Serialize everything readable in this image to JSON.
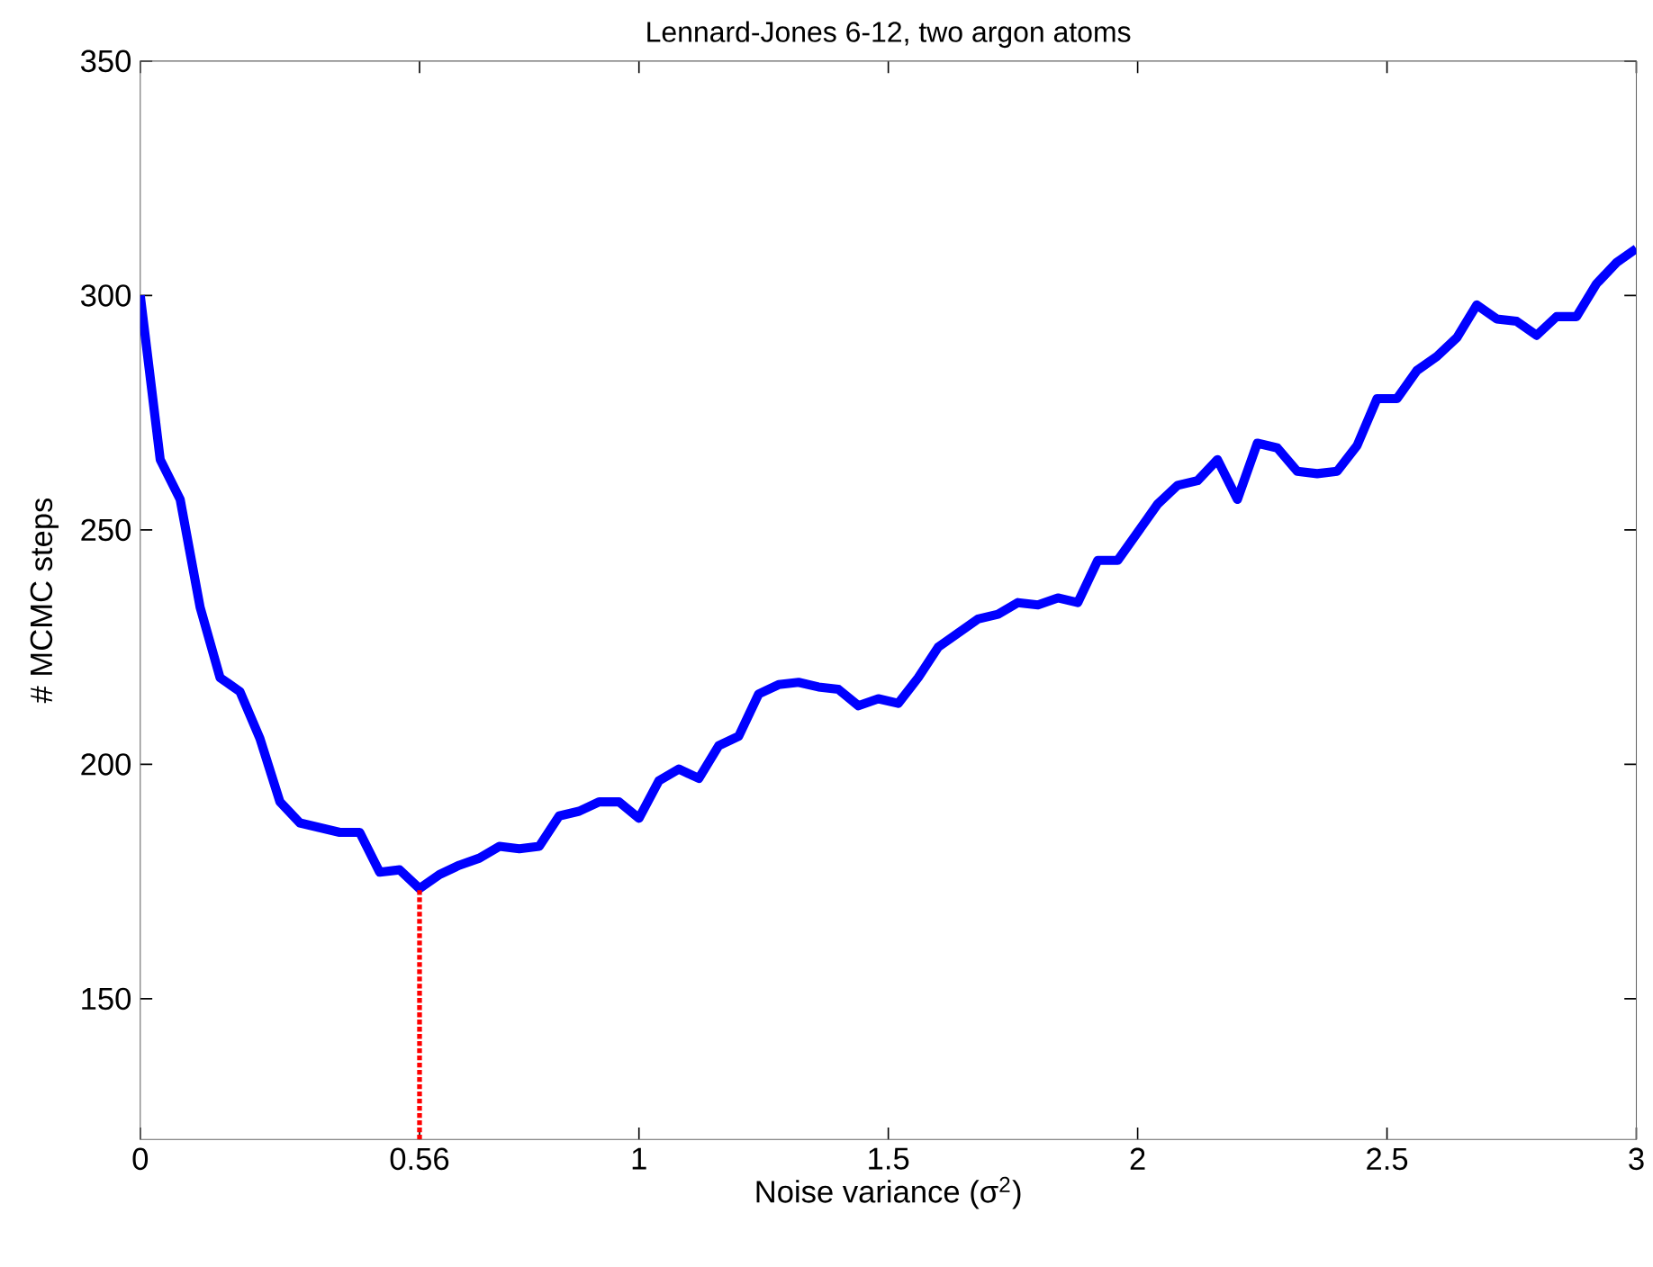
{
  "chart_data": {
    "type": "line",
    "title": "Lennard-Jones 6-12, two argon atoms",
    "xlabel": "Noise variance (σ$^{2}$)",
    "ylabel": "# MCMC steps",
    "x": [
      0,
      0.04,
      0.08,
      0.12,
      0.16,
      0.2,
      0.24,
      0.28,
      0.32,
      0.36,
      0.4,
      0.44,
      0.48,
      0.52,
      0.56,
      0.6,
      0.64,
      0.68,
      0.72,
      0.76,
      0.8,
      0.84,
      0.88,
      0.92,
      0.96,
      1.0,
      1.04,
      1.08,
      1.12,
      1.16,
      1.2,
      1.24,
      1.28,
      1.32,
      1.36,
      1.4,
      1.44,
      1.48,
      1.52,
      1.56,
      1.6,
      1.64,
      1.68,
      1.72,
      1.76,
      1.8,
      1.84,
      1.88,
      1.92,
      1.96,
      2.0,
      2.04,
      2.08,
      2.12,
      2.16,
      2.2,
      2.24,
      2.28,
      2.32,
      2.36,
      2.4,
      2.44,
      2.48,
      2.52,
      2.56,
      2.6,
      2.64,
      2.68,
      2.72,
      2.76,
      2.8,
      2.84,
      2.88,
      2.92,
      2.96,
      3.0
    ],
    "series": [
      {
        "color": "#0000ff",
        "line_style": "solid",
        "values": [
          300,
          265,
          256.5,
          233.5,
          218.5,
          215.5,
          205.5,
          192,
          187.5,
          186.5,
          185.5,
          185.5,
          177,
          177.5,
          173.5,
          176.5,
          178.5,
          180,
          182.5,
          182,
          182.5,
          189,
          190,
          192,
          192,
          188.5,
          196.5,
          199,
          197,
          204,
          206,
          215,
          217,
          217.5,
          216.5,
          216,
          212.5,
          214,
          213,
          218.5,
          225,
          228,
          231,
          232,
          234.5,
          234,
          235.5,
          234.5,
          243.5,
          243.5,
          249.5,
          255.5,
          259.5,
          260.5,
          265,
          256.5,
          268.5,
          267.5,
          262.5,
          262,
          262.5,
          268,
          278,
          278,
          284,
          287,
          291,
          298,
          295,
          294.5,
          291.5,
          295.5,
          295.5,
          302.5,
          307,
          310
        ]
      }
    ],
    "xlim": [
      0,
      3
    ],
    "ylim": [
      120,
      350
    ],
    "xticks": [
      0,
      0.56,
      1,
      1.5,
      2,
      2.5,
      3
    ],
    "yticks": [
      150,
      200,
      250,
      300,
      350
    ],
    "ref_lines": [
      {
        "axis": "x",
        "value": 0.56,
        "color": "#ff0000",
        "line_style": "dotted"
      }
    ],
    "grid": false,
    "marker": "none"
  }
}
